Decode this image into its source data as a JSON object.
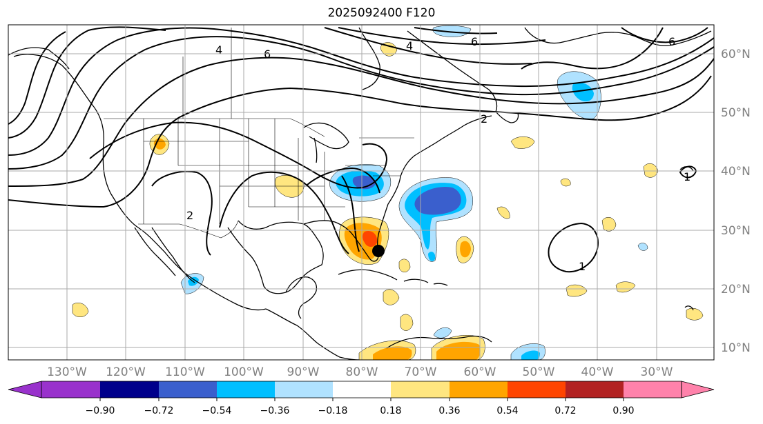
{
  "title": "2025092400 F120",
  "map": {
    "region": "North Atlantic / North America",
    "projection": "PlateCarree",
    "lon_range": [
      -140,
      -25
    ],
    "lat_range": [
      7,
      65
    ],
    "lat_ticks": [
      "60°N",
      "50°N",
      "40°N",
      "30°N",
      "20°N",
      "10°N"
    ],
    "lon_ticks": [
      "130°W",
      "120°W",
      "110°W",
      "100°W",
      "90°W",
      "80°W",
      "70°W",
      "60°W",
      "50°W",
      "40°W",
      "30°W"
    ],
    "contour_labels": [
      "4",
      "6",
      "4",
      "6",
      "6",
      "2",
      "2",
      "1",
      "1"
    ],
    "storm_marker": {
      "lon": -76.5,
      "lat": 26.5
    }
  },
  "colorbar": {
    "ticks": [
      "−0.90",
      "−0.72",
      "−0.54",
      "−0.36",
      "−0.18",
      "0.18",
      "0.36",
      "0.54",
      "0.72",
      "0.90"
    ],
    "colors": [
      "#9932CC",
      "#00008B",
      "#3A5FCD",
      "#00BFFF",
      "#B0E2FF",
      "#FFFFFF",
      "#FFE680",
      "#FFA500",
      "#FF4500",
      "#B22222",
      "#FF82AB"
    ]
  }
}
